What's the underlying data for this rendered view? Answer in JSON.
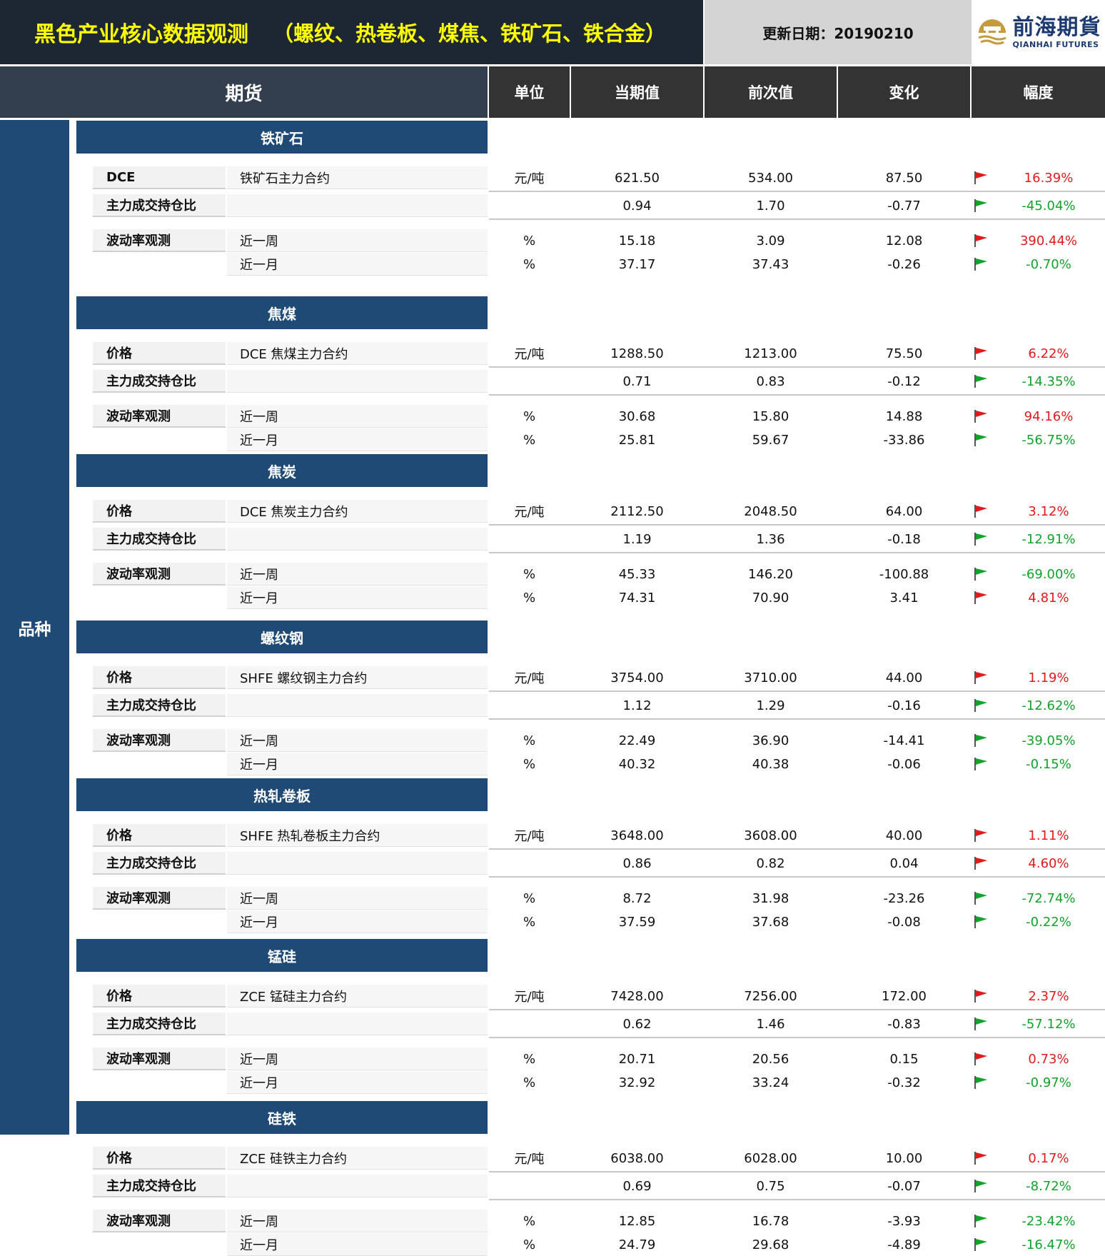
{
  "title": {
    "main": "黑色产业核心数据观测",
    "sub": "（螺纹、热卷板、煤焦、铁矿石、铁合金）",
    "date_label": "更新日期：20190210"
  },
  "logo": {
    "cn": "前海期貨",
    "en": "QIANHAI FUTURES"
  },
  "header": {
    "futures": "期货",
    "unit": "单位",
    "current": "当期值",
    "previous": "前次值",
    "change": "变化",
    "amplitude": "幅度"
  },
  "side_label": "品种",
  "colors": {
    "up": "#e01b1b",
    "down": "#11a32a",
    "section": "#1f4a75",
    "title_text": "#ffff00"
  },
  "sections": [
    {
      "name": "铁矿石",
      "rows": [
        {
          "label": "DCE",
          "desc": "铁矿石主力合约",
          "unit": "元/吨",
          "current": "621.50",
          "previous": "534.00",
          "change": "87.50",
          "pct": "16.39%",
          "dir": "up"
        },
        {
          "label": "主力成交持仓比",
          "desc": "",
          "unit": "",
          "current": "0.94",
          "previous": "1.70",
          "change": "-0.77",
          "pct": "-45.04%",
          "dir": "down"
        },
        {
          "label": "波动率观测",
          "desc": "近一周",
          "unit": "%",
          "current": "15.18",
          "previous": "3.09",
          "change": "12.08",
          "pct": "390.44%",
          "dir": "up"
        },
        {
          "label": "",
          "desc": "近一月",
          "unit": "%",
          "current": "37.17",
          "previous": "37.43",
          "change": "-0.26",
          "pct": "-0.70%",
          "dir": "down"
        }
      ]
    },
    {
      "name": "焦煤",
      "rows": [
        {
          "label": "价格",
          "desc": "DCE 焦煤主力合约",
          "unit": "元/吨",
          "current": "1288.50",
          "previous": "1213.00",
          "change": "75.50",
          "pct": "6.22%",
          "dir": "up"
        },
        {
          "label": "主力成交持仓比",
          "desc": "",
          "unit": "",
          "current": "0.71",
          "previous": "0.83",
          "change": "-0.12",
          "pct": "-14.35%",
          "dir": "down"
        },
        {
          "label": "波动率观测",
          "desc": "近一周",
          "unit": "%",
          "current": "30.68",
          "previous": "15.80",
          "change": "14.88",
          "pct": "94.16%",
          "dir": "up"
        },
        {
          "label": "",
          "desc": "近一月",
          "unit": "%",
          "current": "25.81",
          "previous": "59.67",
          "change": "-33.86",
          "pct": "-56.75%",
          "dir": "down"
        }
      ]
    },
    {
      "name": "焦炭",
      "rows": [
        {
          "label": "价格",
          "desc": "DCE  焦炭主力合约",
          "unit": "元/吨",
          "current": "2112.50",
          "previous": "2048.50",
          "change": "64.00",
          "pct": "3.12%",
          "dir": "up"
        },
        {
          "label": "主力成交持仓比",
          "desc": "",
          "unit": "",
          "current": "1.19",
          "previous": "1.36",
          "change": "-0.18",
          "pct": "-12.91%",
          "dir": "down"
        },
        {
          "label": "波动率观测",
          "desc": "近一周",
          "unit": "%",
          "current": "45.33",
          "previous": "146.20",
          "change": "-100.88",
          "pct": "-69.00%",
          "dir": "down"
        },
        {
          "label": "",
          "desc": "近一月",
          "unit": "%",
          "current": "74.31",
          "previous": "70.90",
          "change": "3.41",
          "pct": "4.81%",
          "dir": "up"
        }
      ]
    },
    {
      "name": "螺纹钢",
      "rows": [
        {
          "label": "价格",
          "desc": "SHFE 螺纹钢主力合约",
          "unit": "元/吨",
          "current": "3754.00",
          "previous": "3710.00",
          "change": "44.00",
          "pct": "1.19%",
          "dir": "up"
        },
        {
          "label": "主力成交持仓比",
          "desc": "",
          "unit": "",
          "current": "1.12",
          "previous": "1.29",
          "change": "-0.16",
          "pct": "-12.62%",
          "dir": "down"
        },
        {
          "label": "波动率观测",
          "desc": "近一周",
          "unit": "%",
          "current": "22.49",
          "previous": "36.90",
          "change": "-14.41",
          "pct": "-39.05%",
          "dir": "down"
        },
        {
          "label": "",
          "desc": "近一月",
          "unit": "%",
          "current": "40.32",
          "previous": "40.38",
          "change": "-0.06",
          "pct": "-0.15%",
          "dir": "down"
        }
      ]
    },
    {
      "name": "热轧卷板",
      "rows": [
        {
          "label": "价格",
          "desc": "SHFE 热轧卷板主力合约",
          "unit": "元/吨",
          "current": "3648.00",
          "previous": "3608.00",
          "change": "40.00",
          "pct": "1.11%",
          "dir": "up"
        },
        {
          "label": "主力成交持仓比",
          "desc": "",
          "unit": "",
          "current": "0.86",
          "previous": "0.82",
          "change": "0.04",
          "pct": "4.60%",
          "dir": "up"
        },
        {
          "label": "波动率观测",
          "desc": "近一周",
          "unit": "%",
          "current": "8.72",
          "previous": "31.98",
          "change": "-23.26",
          "pct": "-72.74%",
          "dir": "down"
        },
        {
          "label": "",
          "desc": "近一月",
          "unit": "%",
          "current": "37.59",
          "previous": "37.68",
          "change": "-0.08",
          "pct": "-0.22%",
          "dir": "down"
        }
      ]
    },
    {
      "name": "锰硅",
      "rows": [
        {
          "label": "价格",
          "desc": "ZCE 锰硅主力合约",
          "unit": "元/吨",
          "current": "7428.00",
          "previous": "7256.00",
          "change": "172.00",
          "pct": "2.37%",
          "dir": "up"
        },
        {
          "label": "主力成交持仓比",
          "desc": "",
          "unit": "",
          "current": "0.62",
          "previous": "1.46",
          "change": "-0.83",
          "pct": "-57.12%",
          "dir": "down"
        },
        {
          "label": "波动率观测",
          "desc": "近一周",
          "unit": "%",
          "current": "20.71",
          "previous": "20.56",
          "change": "0.15",
          "pct": "0.73%",
          "dir": "up"
        },
        {
          "label": "",
          "desc": "近一月",
          "unit": "%",
          "current": "32.92",
          "previous": "33.24",
          "change": "-0.32",
          "pct": "-0.97%",
          "dir": "down"
        }
      ]
    },
    {
      "name": "硅铁",
      "rows": [
        {
          "label": "价格",
          "desc": "ZCE 硅铁主力合约",
          "unit": "元/吨",
          "current": "6038.00",
          "previous": "6028.00",
          "change": "10.00",
          "pct": "0.17%",
          "dir": "up"
        },
        {
          "label": "主力成交持仓比",
          "desc": "",
          "unit": "",
          "current": "0.69",
          "previous": "0.75",
          "change": "-0.07",
          "pct": "-8.72%",
          "dir": "down"
        },
        {
          "label": "波动率观测",
          "desc": "近一周",
          "unit": "%",
          "current": "12.85",
          "previous": "16.78",
          "change": "-3.93",
          "pct": "-23.42%",
          "dir": "down"
        },
        {
          "label": "",
          "desc": "近一月",
          "unit": "%",
          "current": "24.79",
          "previous": "29.68",
          "change": "-4.89",
          "pct": "-16.47%",
          "dir": "down"
        }
      ]
    }
  ]
}
